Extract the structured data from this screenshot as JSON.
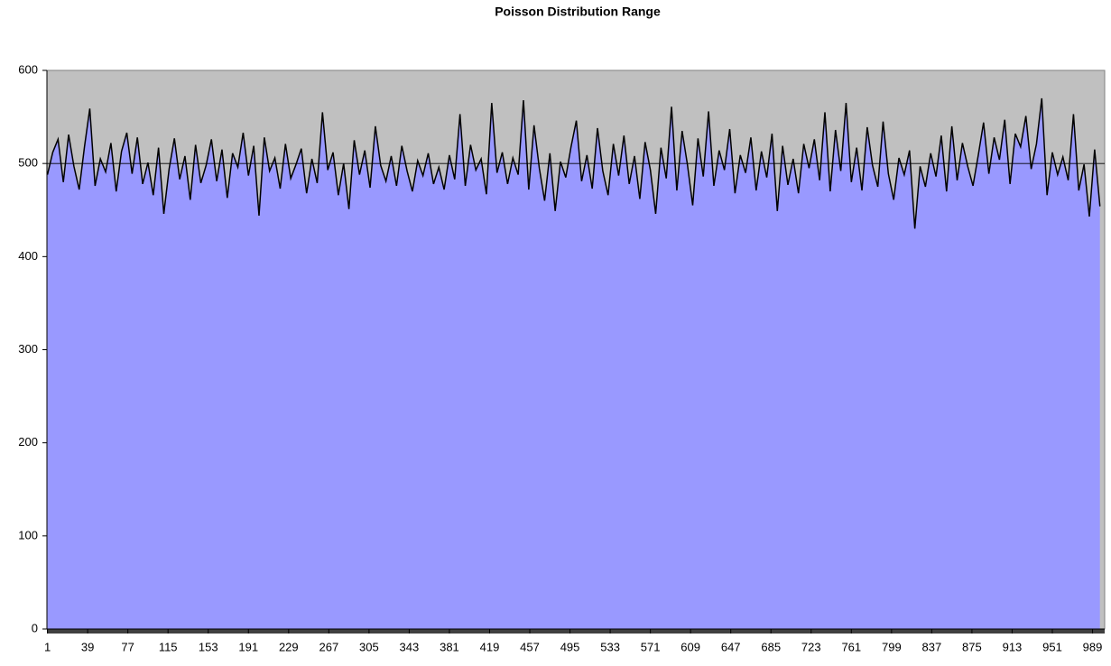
{
  "chart_data": {
    "type": "area",
    "title": "Poisson Distribution Range",
    "x": [
      1,
      6,
      11,
      16,
      21,
      26,
      31,
      36,
      41,
      46,
      51,
      56,
      61,
      66,
      71,
      76,
      81,
      86,
      91,
      96,
      101,
      106,
      111,
      116,
      121,
      126,
      131,
      136,
      141,
      146,
      151,
      156,
      161,
      166,
      171,
      176,
      181,
      186,
      191,
      196,
      201,
      206,
      211,
      216,
      221,
      226,
      231,
      236,
      241,
      246,
      251,
      256,
      261,
      266,
      271,
      276,
      281,
      286,
      291,
      296,
      301,
      306,
      311,
      316,
      321,
      326,
      331,
      336,
      341,
      346,
      351,
      356,
      361,
      366,
      371,
      376,
      381,
      386,
      391,
      396,
      401,
      406,
      411,
      416,
      421,
      426,
      431,
      436,
      441,
      446,
      451,
      456,
      461,
      466,
      471,
      476,
      481,
      486,
      491,
      496,
      501,
      506,
      511,
      516,
      521,
      526,
      531,
      536,
      541,
      546,
      551,
      556,
      561,
      566,
      571,
      576,
      581,
      586,
      591,
      596,
      601,
      606,
      611,
      616,
      621,
      626,
      631,
      636,
      641,
      646,
      651,
      656,
      661,
      666,
      671,
      676,
      681,
      686,
      691,
      696,
      701,
      706,
      711,
      716,
      721,
      726,
      731,
      736,
      741,
      746,
      751,
      756,
      761,
      766,
      771,
      776,
      781,
      786,
      791,
      796,
      801,
      806,
      811,
      816,
      821,
      826,
      831,
      836,
      841,
      846,
      851,
      856,
      861,
      866,
      871,
      876,
      881,
      886,
      891,
      896,
      901,
      906,
      911,
      916,
      921,
      926,
      931,
      936,
      941,
      946,
      951,
      956,
      961,
      966,
      971,
      976,
      981,
      986,
      991,
      996
    ],
    "series": [
      {
        "color": "#9999ff",
        "line_color": "#000000",
        "values": [
          488,
          512,
          526,
          480,
          531,
          497,
          472,
          518,
          559,
          476,
          505,
          491,
          522,
          470,
          513,
          533,
          489,
          528,
          478,
          501,
          466,
          517,
          446,
          494,
          527,
          483,
          508,
          461,
          520,
          479,
          498,
          526,
          481,
          515,
          463,
          511,
          496,
          533,
          487,
          519,
          444,
          528,
          492,
          506,
          473,
          521,
          484,
          499,
          516,
          468,
          505,
          479,
          555,
          493,
          512,
          466,
          500,
          451,
          525,
          488,
          514,
          474,
          540,
          498,
          481,
          508,
          476,
          519,
          492,
          470,
          503,
          487,
          511,
          478,
          496,
          472,
          509,
          483,
          553,
          476,
          520,
          493,
          505,
          467,
          565,
          490,
          512,
          478,
          506,
          488,
          568,
          472,
          541,
          495,
          460,
          511,
          449,
          502,
          485,
          518,
          546,
          481,
          509,
          473,
          538,
          492,
          466,
          521,
          487,
          530,
          478,
          508,
          462,
          523,
          493,
          446,
          517,
          484,
          561,
          471,
          535,
          499,
          455,
          527,
          486,
          556,
          476,
          514,
          493,
          537,
          468,
          509,
          490,
          528,
          471,
          513,
          485,
          532,
          449,
          519,
          477,
          505,
          468,
          521,
          495,
          526,
          482,
          555,
          470,
          536,
          492,
          565,
          480,
          517,
          471,
          539,
          498,
          475,
          545,
          489,
          461,
          506,
          488,
          514,
          430,
          497,
          475,
          511,
          486,
          530,
          470,
          540,
          482,
          522,
          497,
          476,
          509,
          544,
          489,
          528,
          504,
          547,
          478,
          532,
          518,
          551,
          494,
          521,
          570,
          466,
          512,
          488,
          507,
          482,
          553,
          471,
          499,
          443,
          515,
          454
        ]
      }
    ],
    "hline": 500,
    "xlim": [
      0.5,
      1000.5
    ],
    "xticks": [
      1,
      39,
      77,
      115,
      153,
      191,
      229,
      267,
      305,
      343,
      381,
      419,
      457,
      495,
      533,
      571,
      609,
      647,
      685,
      723,
      761,
      799,
      837,
      875,
      913,
      951,
      989
    ],
    "ylim": [
      0,
      600
    ],
    "yticks": [
      0,
      100,
      200,
      300,
      400,
      500,
      600
    ],
    "plot_background": "#c0c0c0"
  }
}
